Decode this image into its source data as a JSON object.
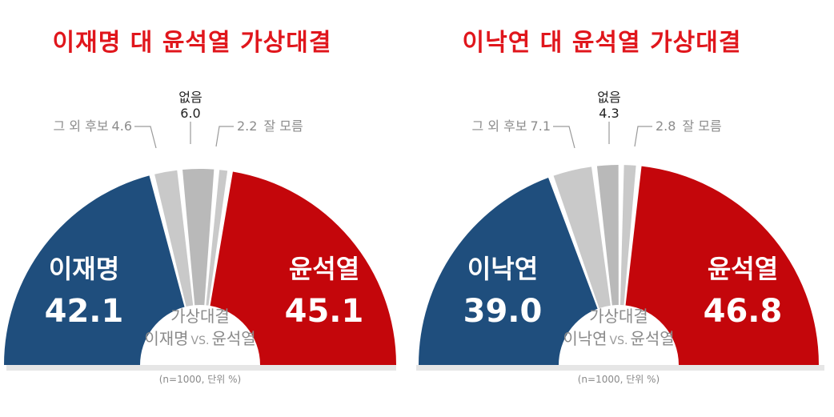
{
  "chart_data": [
    {
      "type": "pie",
      "title": "이재명 대 윤석열 가상대결",
      "center_title": "가상대결",
      "center_sub_a": "이재명",
      "center_vs": "VS.",
      "center_sub_b": "윤석열",
      "note": "(n=1000, 단위 %)",
      "slices": [
        {
          "label": "이재명",
          "value": 42.1,
          "color": "#1f4e7d"
        },
        {
          "label": "그 외 후보",
          "value": 4.6,
          "color": "#c9c9c9"
        },
        {
          "label": "없음",
          "value": 6.0,
          "color": "#b9b9b9"
        },
        {
          "label": "잘 모름",
          "value": 2.2,
          "color": "#c9c9c9"
        },
        {
          "label": "윤석열",
          "value": 45.1,
          "color": "#c4060b"
        }
      ]
    },
    {
      "type": "pie",
      "title": "이낙연 대 윤석열 가상대결",
      "center_title": "가상대결",
      "center_sub_a": "이낙연",
      "center_vs": "VS.",
      "center_sub_b": "윤석열",
      "note": "(n=1000, 단위 %)",
      "slices": [
        {
          "label": "이낙연",
          "value": 39.0,
          "color": "#1f4e7d"
        },
        {
          "label": "그 외 후보",
          "value": 7.1,
          "color": "#c9c9c9"
        },
        {
          "label": "없음",
          "value": 4.3,
          "color": "#b9b9b9"
        },
        {
          "label": "잘 모름",
          "value": 2.8,
          "color": "#c9c9c9"
        },
        {
          "label": "윤석열",
          "value": 46.8,
          "color": "#c4060b"
        }
      ]
    }
  ],
  "colors": {
    "title": "#e0161c",
    "base_bar": "#e6e6e6"
  }
}
